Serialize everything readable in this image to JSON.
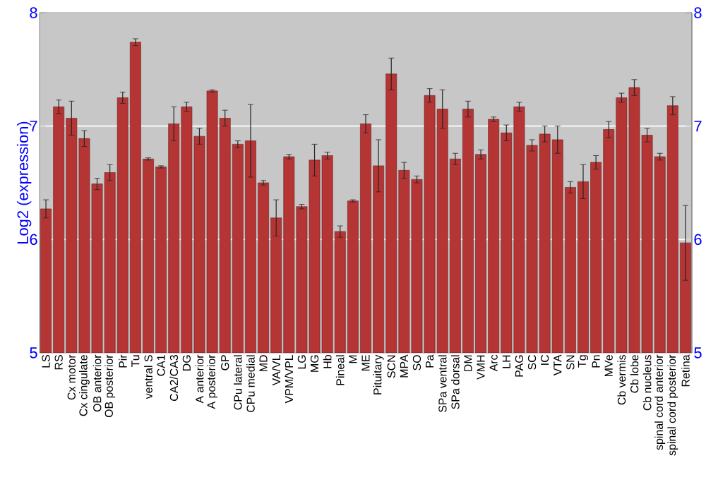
{
  "chart_data": {
    "type": "bar",
    "ylabel": "Log2 (expression)",
    "categories": [
      "LS",
      "RS",
      "Cx motor",
      "Cx cingulate",
      "OB anterior",
      "OB posterior",
      "Pir",
      "Tu",
      "ventral S",
      "CA1",
      "CA2/CA3",
      "DG",
      "A anterior",
      "A posterior",
      "GP",
      "CPu lateral",
      "CPu medial",
      "MD",
      "VA/VL",
      "VPM/VPL",
      "LG",
      "MG",
      "Hb",
      "Pineal",
      "M",
      "ME",
      "Pituitary",
      "SCN",
      "MPA",
      "SO",
      "Pa",
      "SPa ventral",
      "SPa dorsal",
      "DM",
      "VMH",
      "Arc",
      "LH",
      "PAG",
      "SC",
      "IC",
      "VTA",
      "SN",
      "Tg",
      "Pn",
      "MVe",
      "Cb vermis",
      "Cb lobe",
      "Cb nucleus",
      "spinal cord anterior",
      "spinal cord posterior",
      "Retina"
    ],
    "values": [
      6.27,
      7.17,
      7.07,
      6.89,
      6.49,
      6.59,
      7.25,
      7.74,
      6.71,
      6.64,
      7.02,
      7.17,
      6.91,
      7.31,
      7.07,
      6.84,
      6.87,
      6.5,
      6.19,
      6.73,
      6.29,
      6.7,
      6.74,
      6.07,
      6.34,
      7.02,
      6.65,
      7.46,
      6.61,
      6.53,
      7.27,
      7.15,
      6.71,
      7.15,
      6.75,
      7.06,
      6.94,
      7.17,
      6.83,
      6.93,
      6.88,
      6.46,
      6.51,
      6.68,
      6.97,
      7.25,
      7.34,
      6.92,
      6.73,
      7.18,
      5.97
    ],
    "errors": [
      0.08,
      0.06,
      0.15,
      0.07,
      0.05,
      0.07,
      0.05,
      0.03,
      0.01,
      0.01,
      0.15,
      0.04,
      0.07,
      0.01,
      0.07,
      0.03,
      0.32,
      0.02,
      0.16,
      0.02,
      0.02,
      0.14,
      0.03,
      0.05,
      0.01,
      0.08,
      0.23,
      0.14,
      0.07,
      0.03,
      0.06,
      0.17,
      0.05,
      0.07,
      0.04,
      0.02,
      0.07,
      0.04,
      0.05,
      0.07,
      0.12,
      0.05,
      0.15,
      0.06,
      0.07,
      0.04,
      0.07,
      0.06,
      0.03,
      0.08,
      0.33
    ],
    "color": "#b53434",
    "ylim": [
      5,
      8
    ],
    "yticks": [
      5,
      6,
      7,
      8
    ],
    "y2lim": [
      5,
      8
    ],
    "y2ticks": [
      5,
      6,
      7,
      8
    ],
    "grid": "y"
  }
}
